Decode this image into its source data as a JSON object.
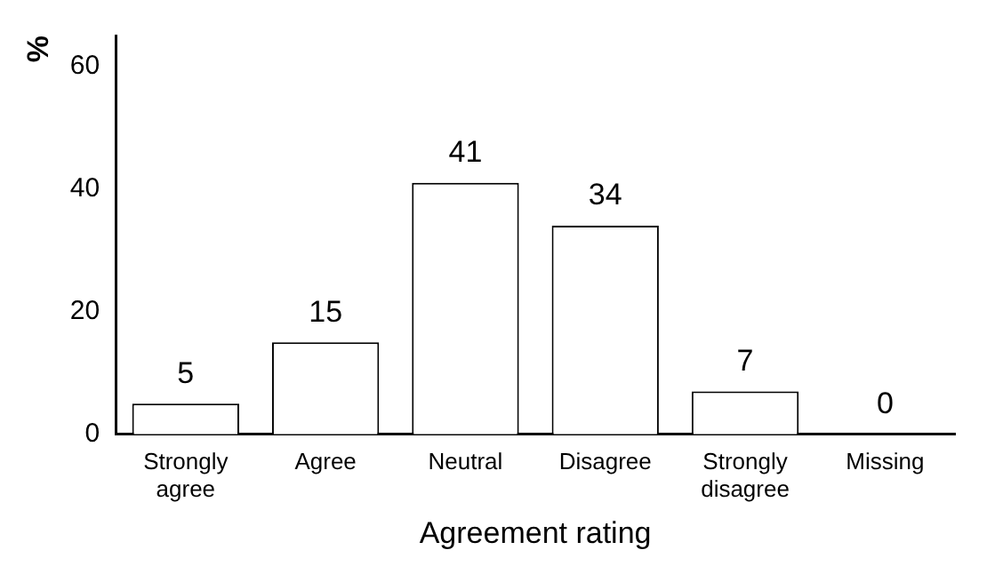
{
  "chart_data": {
    "type": "bar",
    "xlabel": "Agreement rating",
    "ylabel": "%",
    "categories": [
      "Strongly agree",
      "Agree",
      "Neutral",
      "Disagree",
      "Strongly disagree",
      "Missing"
    ],
    "values": [
      5,
      15,
      41,
      34,
      7,
      0
    ],
    "color": "#ffffff",
    "ylim": [
      0,
      65
    ],
    "yticks": [
      0,
      20,
      40,
      60
    ],
    "grid": false,
    "legend": false,
    "data_labels": true
  }
}
